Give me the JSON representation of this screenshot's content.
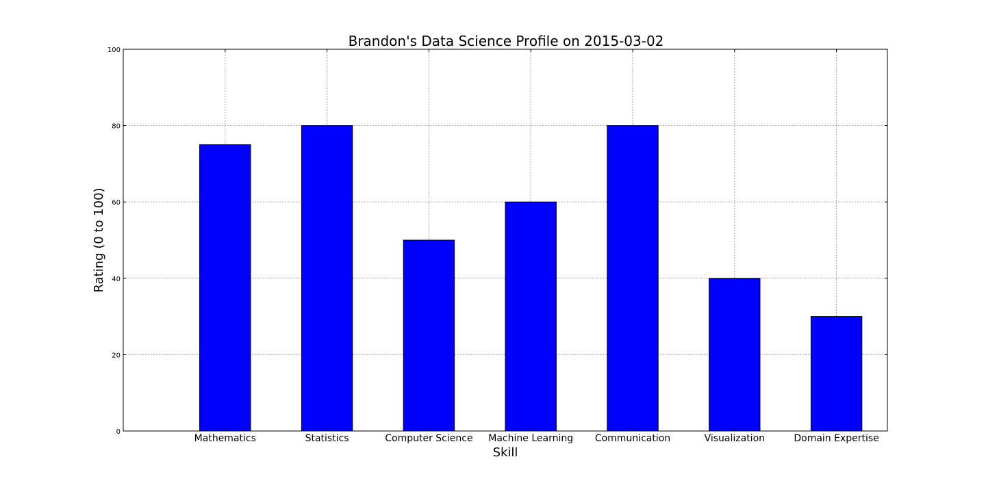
{
  "chart_data": {
    "type": "bar",
    "title": "Brandon's Data Science Profile on 2015-03-02",
    "xlabel": "Skill",
    "ylabel": "Rating (0 to 100)",
    "categories": [
      "Mathematics",
      "Statistics",
      "Computer Science",
      "Machine Learning",
      "Communication",
      "Visualization",
      "Domain Expertise"
    ],
    "values": [
      75,
      80,
      50,
      60,
      80,
      40,
      30
    ],
    "ylim": [
      0,
      100
    ],
    "yticks": [
      "0",
      "20",
      "40",
      "60",
      "80",
      "100"
    ],
    "grid": true,
    "bar_color": "#0000ff",
    "edge_color": "#000000"
  }
}
